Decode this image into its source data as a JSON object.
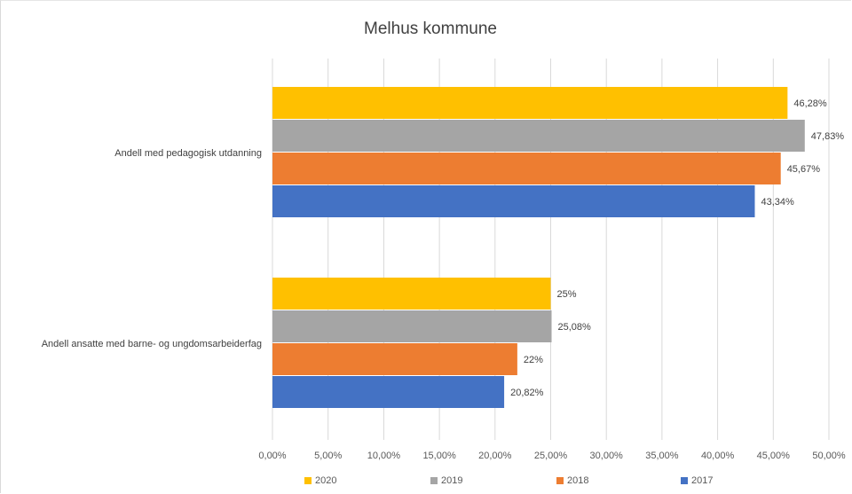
{
  "chart_data": {
    "type": "bar",
    "orientation": "horizontal",
    "title": "Melhus kommune",
    "categories": [
      "Andell med pedagogisk utdanning",
      "Andell ansatte med barne- og ungdomsarbeiderfag"
    ],
    "series": [
      {
        "name": "2020",
        "color": "#FFC000",
        "values": [
          46.28,
          25.0
        ],
        "labels": [
          "46,28%",
          "25%"
        ]
      },
      {
        "name": "2019",
        "color": "#A5A5A5",
        "values": [
          47.83,
          25.08
        ],
        "labels": [
          "47,83%",
          "25,08%"
        ]
      },
      {
        "name": "2018",
        "color": "#ED7D31",
        "values": [
          45.67,
          22.0
        ],
        "labels": [
          "45,67%",
          "22%"
        ]
      },
      {
        "name": "2017",
        "color": "#4472C4",
        "values": [
          43.34,
          20.82
        ],
        "labels": [
          "43,34%",
          "20,82%"
        ]
      }
    ],
    "xlim": [
      0,
      50
    ],
    "xticks": [
      0,
      5,
      10,
      15,
      20,
      25,
      30,
      35,
      40,
      45,
      50
    ],
    "xtick_labels": [
      "0,00%",
      "5,00%",
      "10,00%",
      "15,00%",
      "20,00%",
      "25,00%",
      "30,00%",
      "35,00%",
      "40,00%",
      "45,00%",
      "50,00%"
    ],
    "grid": true,
    "legend_position": "bottom"
  }
}
